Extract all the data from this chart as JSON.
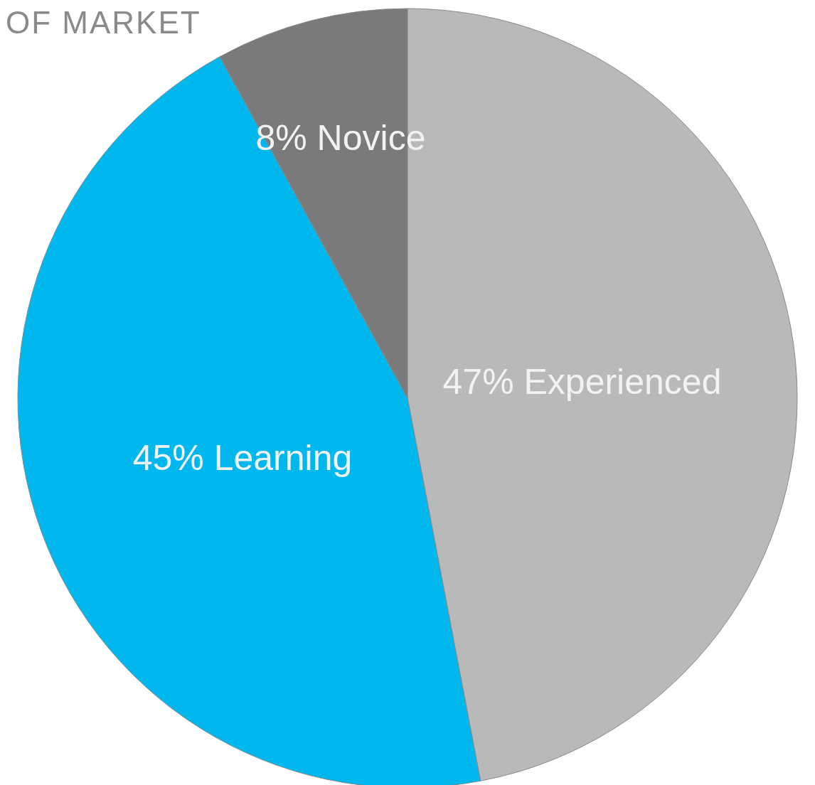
{
  "chart_data": {
    "type": "pie",
    "title": "OF MARKET",
    "categories": [
      "Experienced",
      "Learning",
      "Novice"
    ],
    "values": [
      47,
      45,
      8
    ],
    "colors": [
      "#b9b9b9",
      "#00b8ee",
      "#7a7a7a"
    ],
    "value_labels": [
      "47%",
      "45%",
      "8%"
    ]
  }
}
